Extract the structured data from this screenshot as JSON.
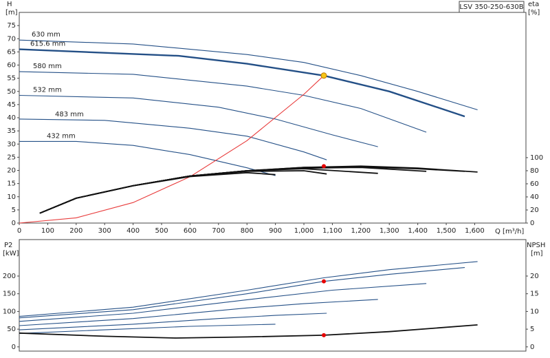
{
  "chart_data": [
    {
      "type": "line",
      "title": "LSV 350-250-630B",
      "y_label": [
        "H",
        "[m]"
      ],
      "y2_label": [
        "eta",
        "[%]"
      ],
      "x_label": "Q [m³/h]",
      "xlim": [
        0,
        1780
      ],
      "ylim": [
        0,
        80
      ],
      "y2lim": [
        0,
        322
      ],
      "xticks": [
        0,
        100,
        200,
        300,
        400,
        500,
        600,
        700,
        800,
        900,
        {
          "value": 1000,
          "label": "1,000"
        },
        {
          "value": 1100,
          "label": "1,100"
        },
        {
          "value": 1200,
          "label": "1,200"
        },
        {
          "value": 1300,
          "label": "1,300"
        },
        {
          "value": 1400,
          "label": "1,400"
        },
        {
          "value": 1500,
          "label": "1,500"
        },
        {
          "value": 1600,
          "label": "1,600"
        }
      ],
      "yticks": [
        0,
        5,
        10,
        15,
        20,
        25,
        30,
        35,
        40,
        45,
        50,
        55,
        60,
        65,
        70,
        75
      ],
      "y2ticks": [
        0,
        20,
        40,
        60,
        80,
        100
      ],
      "series": [
        {
          "name": "630 mm",
          "color": "#234f86",
          "x": [
            0,
            400,
            800,
            1000,
            1200,
            1400,
            1610
          ],
          "values": [
            69.5,
            68,
            64,
            61,
            56,
            50,
            43
          ]
        },
        {
          "name": "615.6 mm",
          "color": "#234f86",
          "x": [
            0,
            560,
            800,
            1070,
            1300,
            1565
          ],
          "values": [
            66,
            63.5,
            60.5,
            56,
            50,
            40.5
          ]
        },
        {
          "name": "580 mm",
          "color": "#234f86",
          "x": [
            0,
            400,
            800,
            1000,
            1200,
            1430
          ],
          "values": [
            57.5,
            56.5,
            52,
            48.5,
            43.5,
            34.5
          ]
        },
        {
          "name": "532 mm",
          "color": "#234f86",
          "x": [
            0,
            400,
            700,
            900,
            1100,
            1260
          ],
          "values": [
            48.5,
            47.5,
            44,
            39.5,
            33.5,
            29
          ]
        },
        {
          "name": "483 mm",
          "color": "#234f86",
          "x": [
            0,
            300,
            600,
            800,
            1000,
            1080
          ],
          "values": [
            39.5,
            39,
            36,
            33,
            27,
            24
          ]
        },
        {
          "name": "432 mm",
          "color": "#234f86",
          "x": [
            0,
            200,
            400,
            600,
            800,
            900
          ],
          "values": [
            31,
            31,
            29.5,
            26,
            21,
            18
          ]
        },
        {
          "color": "#e83a3a",
          "x": [
            0,
            200,
            400,
            600,
            800,
            1000,
            1070
          ],
          "values": [
            0,
            2,
            7.8,
            17.6,
            31.3,
            48.9,
            56
          ]
        },
        {
          "color": "#111111",
          "axis": "y2",
          "x": [
            72,
            200,
            400,
            600,
            800,
            1000,
            1200,
            1400,
            1610
          ],
          "values": [
            15,
            38,
            57,
            72,
            80,
            85,
            87,
            84,
            78
          ]
        },
        {
          "color": "#111111",
          "axis": "y2",
          "x": [
            72,
            200,
            400,
            600,
            800,
            1000,
            1200,
            1400,
            1565
          ],
          "values": [
            15,
            38,
            57,
            72,
            80,
            85,
            86,
            83,
            79
          ]
        },
        {
          "color": "#111111",
          "axis": "y2",
          "x": [
            72,
            200,
            400,
            600,
            800,
            1000,
            1200,
            1430
          ],
          "values": [
            15,
            38,
            57,
            72,
            80,
            84,
            85,
            79
          ]
        },
        {
          "color": "#111111",
          "axis": "y2",
          "x": [
            72,
            200,
            400,
            600,
            800,
            1000,
            1260
          ],
          "values": [
            15,
            38,
            57,
            72,
            80,
            83,
            76
          ]
        },
        {
          "color": "#111111",
          "axis": "y2",
          "x": [
            72,
            200,
            400,
            600,
            800,
            1000,
            1080
          ],
          "values": [
            15,
            38,
            57,
            72,
            79,
            80,
            75
          ]
        },
        {
          "color": "#111111",
          "axis": "y2",
          "x": [
            72,
            200,
            400,
            600,
            800,
            900
          ],
          "values": [
            15,
            38,
            57,
            71,
            77,
            74
          ]
        }
      ],
      "points": [
        {
          "x": 1070,
          "y": 56,
          "color": "#f5c518"
        },
        {
          "x": 1070,
          "y": 87,
          "color": "#e60000",
          "axis": "y2"
        }
      ]
    },
    {
      "type": "line",
      "y_label": [
        "P2",
        "[kW]"
      ],
      "y2_label": [
        "NPSH",
        "[m]"
      ],
      "xlim": [
        0,
        1780
      ],
      "ylim": [
        -12,
        303
      ],
      "y2lim": [
        -1.2,
        30.3
      ],
      "yticks": [
        0,
        50,
        100,
        150,
        200
      ],
      "y2ticks": [
        0,
        5,
        10,
        15,
        20
      ],
      "series": [
        {
          "color": "#234f86",
          "x": [
            0,
            400,
            800,
            1070,
            1300,
            1610
          ],
          "values": [
            86,
            112,
            160,
            195,
            218,
            241
          ]
        },
        {
          "color": "#234f86",
          "x": [
            0,
            400,
            800,
            1070,
            1300,
            1565
          ],
          "values": [
            82,
            105,
            150,
            185,
            205,
            224
          ]
        },
        {
          "color": "#234f86",
          "x": [
            0,
            400,
            800,
            1100,
            1430
          ],
          "values": [
            72,
            95,
            133,
            160,
            179
          ]
        },
        {
          "color": "#234f86",
          "x": [
            0,
            400,
            800,
            1000,
            1260
          ],
          "values": [
            60,
            80,
            110,
            122,
            134
          ]
        },
        {
          "color": "#234f86",
          "x": [
            0,
            400,
            700,
            900,
            1080
          ],
          "values": [
            48,
            64,
            80,
            89,
            95
          ]
        },
        {
          "color": "#234f86",
          "x": [
            0,
            300,
            600,
            900
          ],
          "values": [
            38,
            48,
            58,
            64
          ]
        },
        {
          "color": "#111111",
          "axis": "y2",
          "x": [
            0,
            300,
            550,
            800,
            1070,
            1300,
            1610
          ],
          "values": [
            3.9,
            3,
            2.5,
            2.8,
            3.3,
            4.3,
            6.2
          ]
        }
      ],
      "points": [
        {
          "x": 1070,
          "y": 185,
          "color": "#e60000"
        },
        {
          "x": 1070,
          "y": 3.3,
          "color": "#e60000",
          "axis": "y2"
        }
      ]
    }
  ]
}
